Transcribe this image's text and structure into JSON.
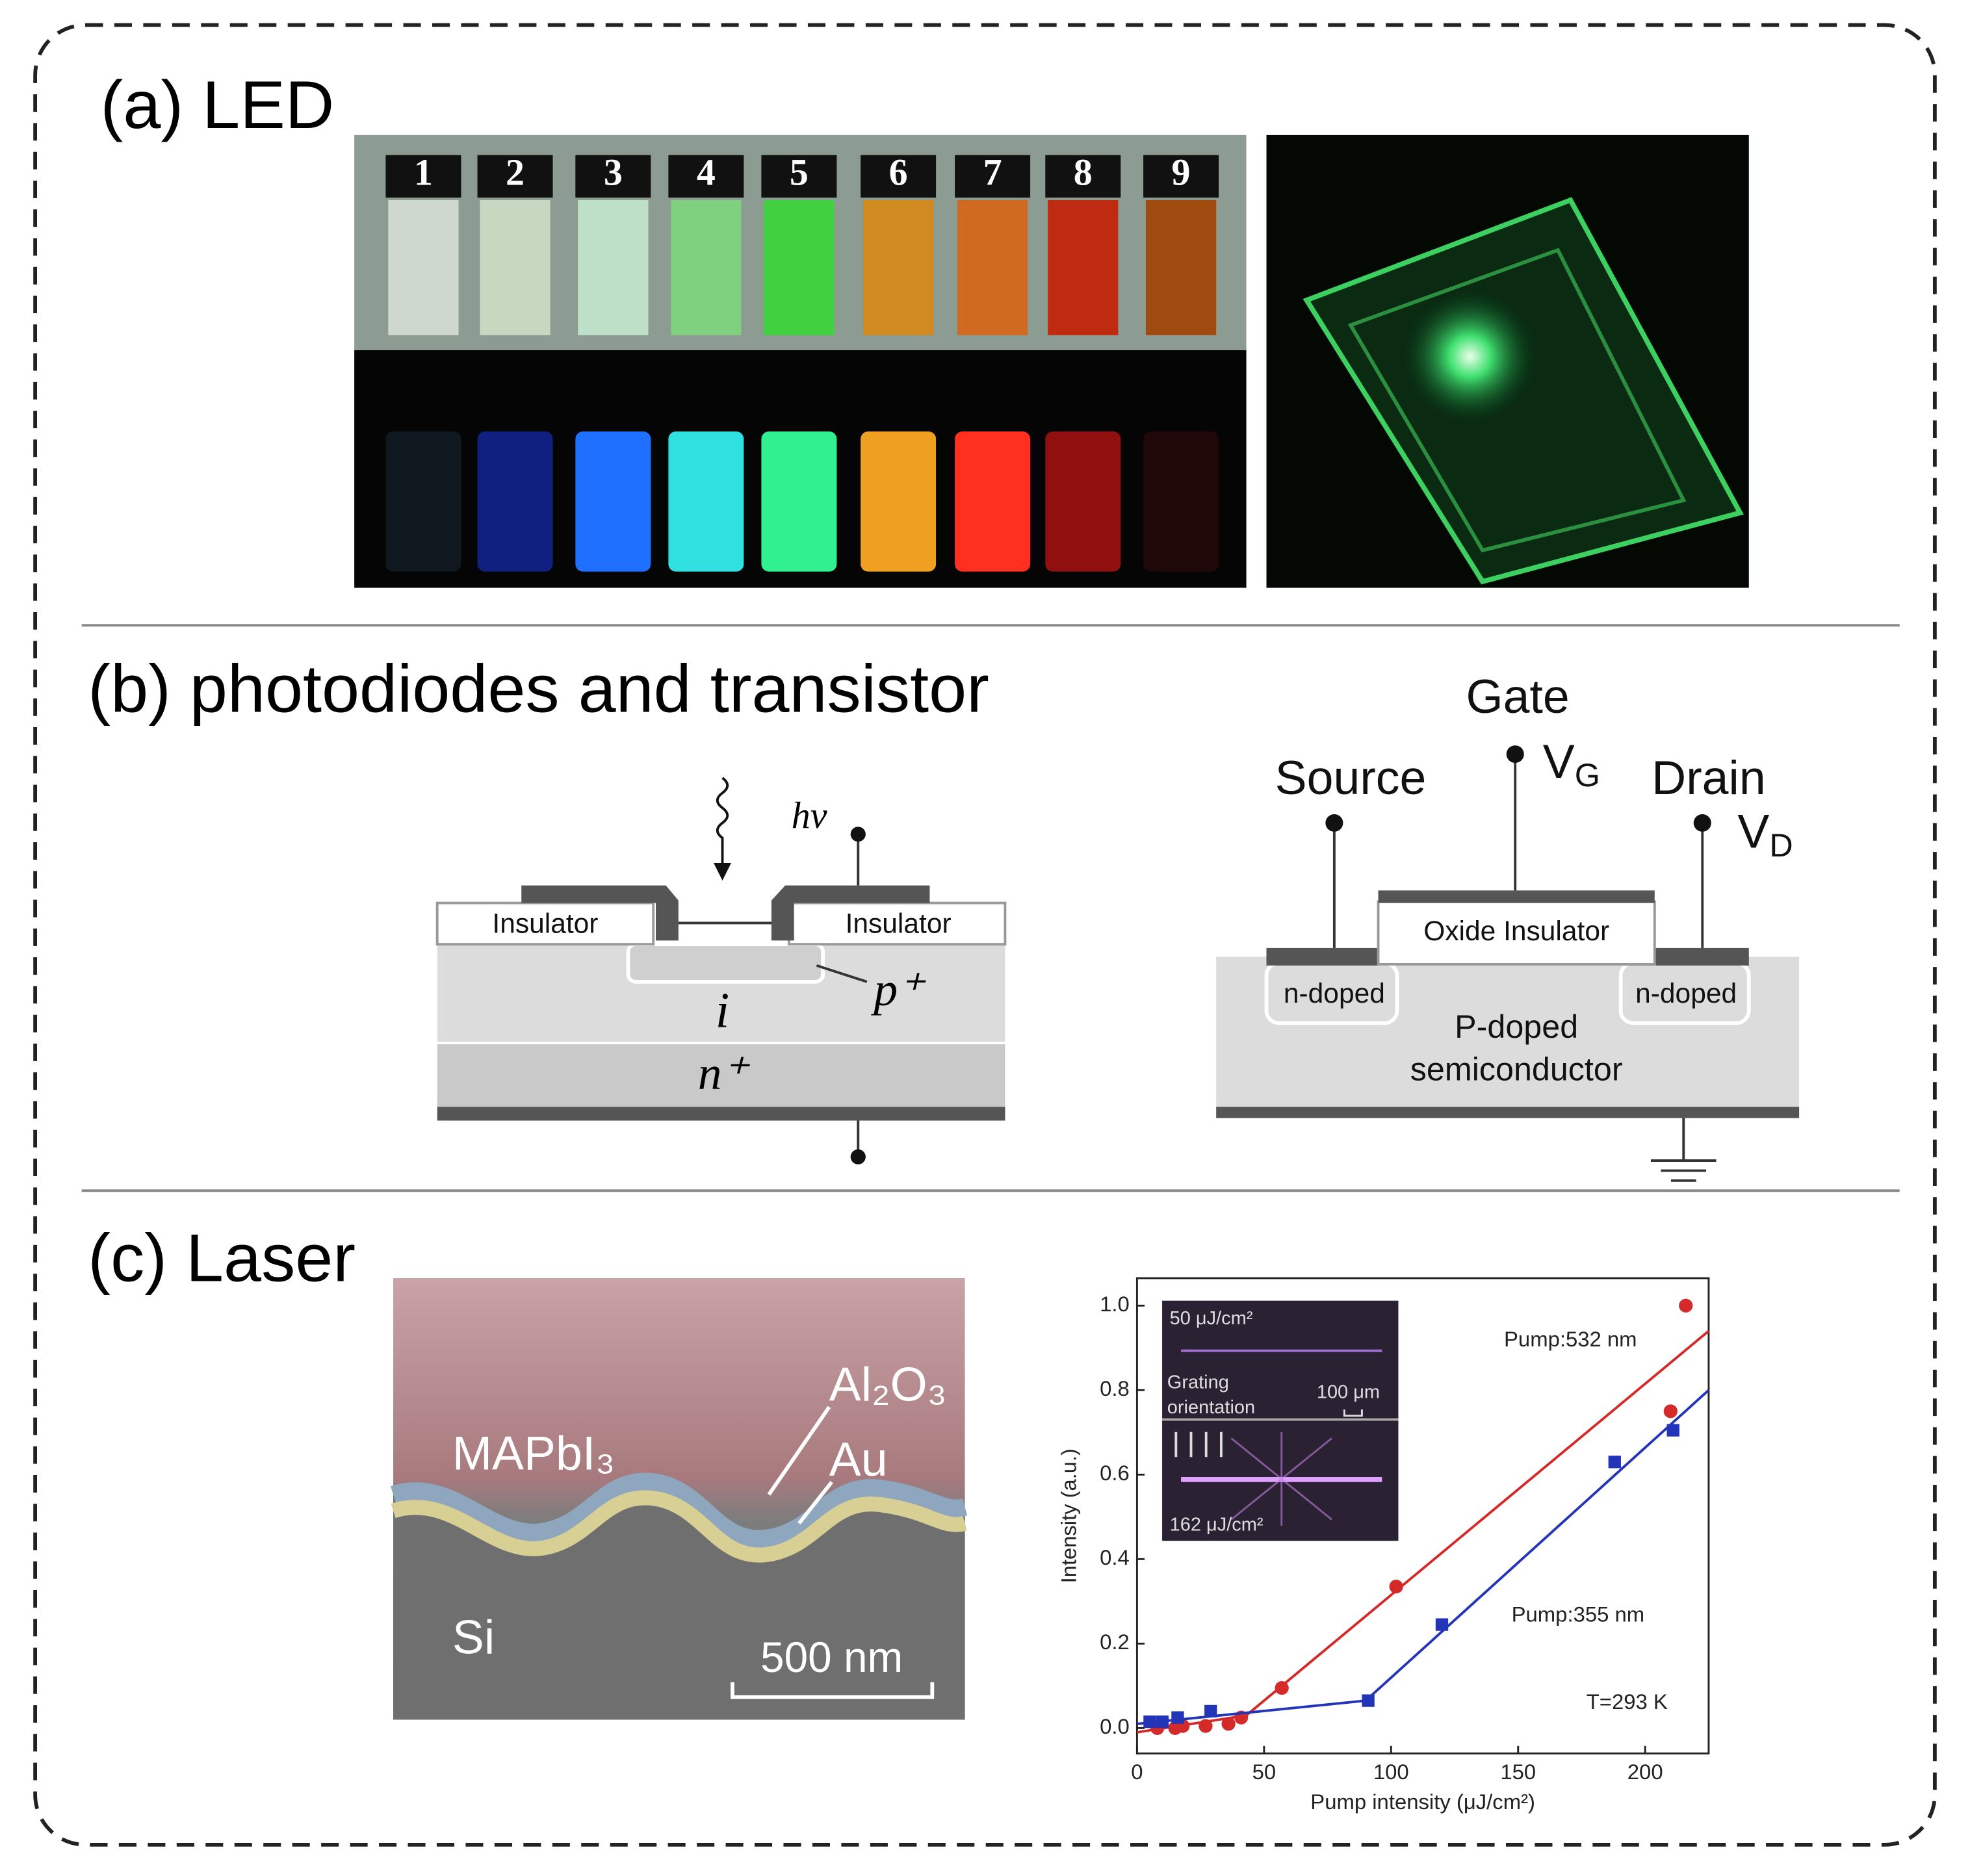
{
  "panels": {
    "a": {
      "title": "(a) LED",
      "vial_numbers": [
        "1",
        "2",
        "3",
        "4",
        "5",
        "6",
        "7",
        "8",
        "9"
      ]
    },
    "b": {
      "title": "(b) photodiodes and transistor",
      "photodiode": {
        "light": "hν",
        "insulator_left": "Insulator",
        "insulator_right": "Insulator",
        "p_layer": "p⁺",
        "i_layer": "i",
        "n_layer": "n⁺"
      },
      "transistor": {
        "gate": "Gate",
        "source": "Source",
        "drain": "Drain",
        "gate_voltage": {
          "symbol": "V",
          "subscript": "G"
        },
        "drain_voltage": {
          "symbol": "V",
          "subscript": "D"
        },
        "oxide": "Oxide Insulator",
        "n_doped_left": "n-doped",
        "n_doped_right": "n-doped",
        "substrate_line1": "P-doped",
        "substrate_line2": "semiconductor"
      }
    },
    "c": {
      "title": "(c) Laser",
      "sem": {
        "perovskite": "MAPbI₃",
        "oxide": "Al₂O₃",
        "gold": "Au",
        "substrate": "Si",
        "scale_bar": "500 nm"
      }
    }
  },
  "chart_data": {
    "type": "scatter",
    "x_label": "Pump intensity (μJ/cm²)",
    "y_label": "Intensity (a.u.)",
    "xlim": [
      0,
      225
    ],
    "ylim": [
      -0.06,
      1.065
    ],
    "xticks": [
      0,
      50,
      100,
      150,
      200
    ],
    "yticks": [
      {
        "value": 0,
        "label": "0.0"
      },
      0.2,
      0.4,
      0.6,
      0.8,
      {
        "value": 1,
        "label": "1.0"
      }
    ],
    "series": [
      {
        "name": "Pump:532 nm",
        "color": "#d42a2a",
        "marker": "circle",
        "x": [
          8,
          15,
          18,
          27,
          36,
          41,
          57,
          102,
          210,
          216
        ],
        "values": [
          0,
          0,
          0.005,
          0.005,
          0.01,
          0.025,
          0.095,
          0.335,
          0.75,
          1.0
        ],
        "fit": {
          "x": [
            0,
            43,
            225
          ],
          "values": [
            -0.01,
            0.03,
            0.94
          ]
        }
      },
      {
        "name": "Pump:355 nm",
        "color": "#2434b8",
        "marker": "square",
        "x": [
          5,
          10,
          16,
          29,
          91,
          120,
          188,
          211
        ],
        "values": [
          0.015,
          0.015,
          0.025,
          0.04,
          0.065,
          0.245,
          0.63,
          0.705
        ],
        "fit": {
          "x": [
            0,
            90,
            225
          ],
          "values": [
            0.01,
            0.065,
            0.8
          ]
        }
      }
    ],
    "annotation": "T=293 K",
    "inset": {
      "top_fluence": "50 μJ/cm²",
      "orientation_line1": "Grating",
      "orientation_line2": "orientation",
      "scale": "100 μm",
      "bottom_fluence": "162 μJ/cm²"
    }
  }
}
